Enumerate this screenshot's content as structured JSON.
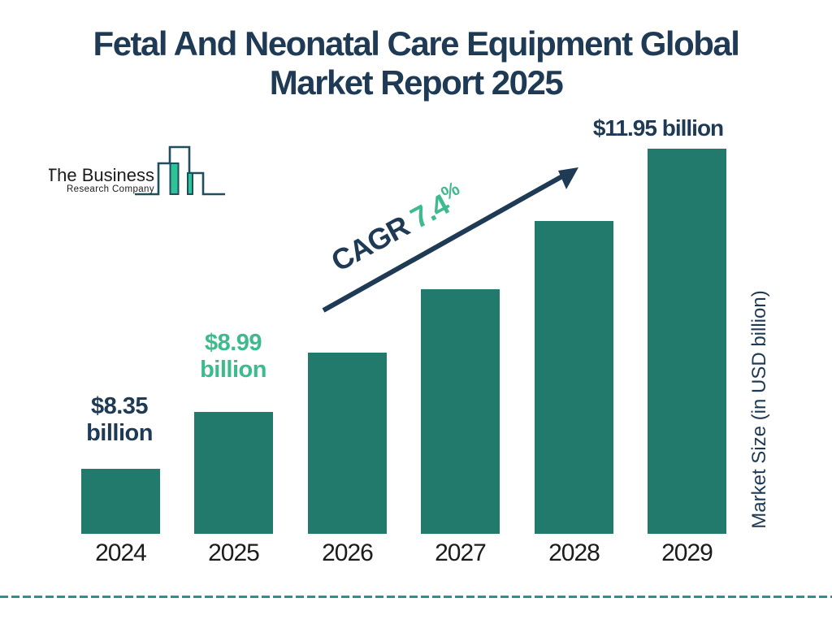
{
  "title": {
    "line1": "Fetal And Neonatal Care Equipment Global",
    "line2": "Market Report 2025"
  },
  "logo": {
    "name_line1": "The Business",
    "name_line2": "Research Company"
  },
  "cagr": {
    "prefix": "CAGR",
    "value": "7.4",
    "percent_sign": "%"
  },
  "colors": {
    "bar": "#217a6c",
    "navy": "#1f3a55",
    "green": "#3dbb8c",
    "dashed_line": "#2a9488",
    "logo_outline": "#1f4e5c",
    "logo_fill": "#2ec497",
    "axis_text": "#1c1c1c"
  },
  "chart_data": {
    "type": "bar",
    "title": "Fetal And Neonatal Care Equipment Global Market Report 2025",
    "categories": [
      "2024",
      "2025",
      "2026",
      "2027",
      "2028",
      "2029"
    ],
    "values": [
      8.35,
      8.99,
      9.66,
      10.37,
      11.14,
      11.95
    ],
    "units": "USD billion",
    "xlabel": "",
    "ylabel": "Market Size (in USD billion)",
    "value_axis_min": 7.62,
    "value_axis_max": 11.95,
    "annotation": "CAGR 7.4%",
    "grid": false,
    "legend": false,
    "data_labels": [
      {
        "year": "2024",
        "line1": "$8.35",
        "line2": "billion",
        "color": "navy"
      },
      {
        "year": "2025",
        "line1": "$8.99",
        "line2": "billion",
        "color": "green"
      },
      {
        "year": "2029",
        "line1": "$11.95 billion",
        "color": "navy"
      }
    ]
  }
}
